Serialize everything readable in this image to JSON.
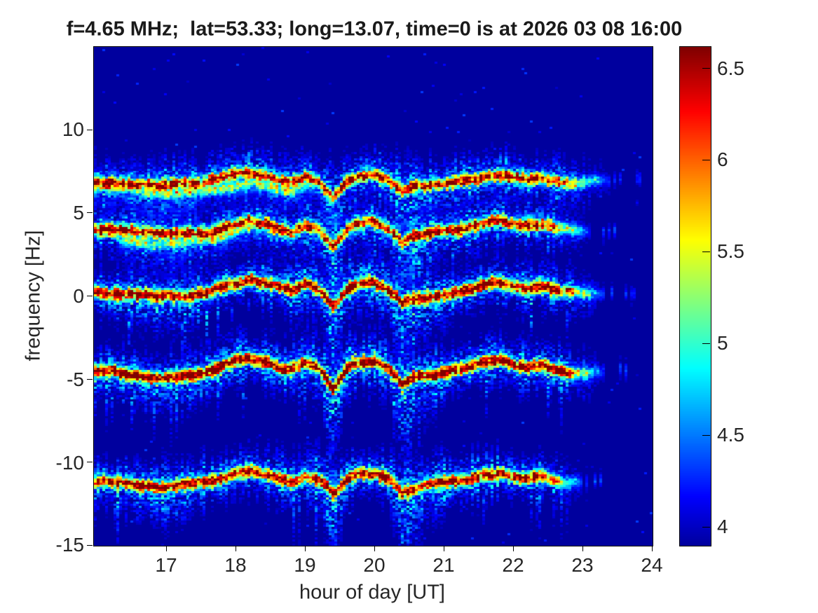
{
  "title": "f=4.65 MHz;  lat=53.33; long=13.07, time=0 is at 2026 03 08 16:00",
  "colors": {
    "figure_background": "#ffffff",
    "plot_background": "rgb(0,0,158)",
    "text": "#262626",
    "colormap_low": "#000080",
    "colormap_high": "#7f0000"
  },
  "chart_data": {
    "type": "heatmap",
    "subtype": "doppler-spectrogram",
    "title": "f=4.65 MHz;  lat=53.33; long=13.07, time=0 is at 2026 03 08 16:00",
    "xlabel": "hour of day [UT]",
    "ylabel": "frequency [Hz]",
    "xlim": [
      15.95,
      24
    ],
    "ylim": [
      -15,
      15
    ],
    "x_ticks": [
      "17",
      "18",
      "19",
      "20",
      "21",
      "22",
      "23",
      "24"
    ],
    "x_tick_values": [
      17,
      18,
      19,
      20,
      21,
      22,
      23,
      24
    ],
    "y_ticks": [
      "10",
      "5",
      "0",
      "-5",
      "-10",
      "-15"
    ],
    "y_tick_values": [
      10,
      5,
      0,
      -5,
      -10,
      -15
    ],
    "grid": false,
    "colormap": "jet",
    "colorbar": {
      "position": "right",
      "ticks": [
        "4",
        "4.5",
        "5",
        "5.5",
        "6",
        "6.5"
      ],
      "tick_values": [
        4,
        4.5,
        5,
        5.5,
        6,
        6.5
      ],
      "range": [
        3.9,
        6.62
      ]
    },
    "background_value": 3.9,
    "wiggle": {
      "comment": "common Doppler excursion pattern [Hz] shared by all multipath traces",
      "start_hour": 16.0,
      "step_hour": 0.2,
      "relative_hz": [
        0,
        -0.05,
        -0.12,
        -0.2,
        -0.3,
        -0.35,
        -0.28,
        -0.18,
        -0.02,
        0.22,
        0.45,
        0.65,
        0.45,
        0.12,
        -0.05,
        0.42,
        0.08,
        -1.0,
        0.12,
        0.48,
        0.55,
        0.05,
        -0.85,
        -0.45,
        -0.25,
        -0.12,
        0.05,
        0.25,
        0.45,
        0.55,
        0.32,
        0.12,
        0.25,
        0.1,
        -0.05,
        -0.1,
        -0.05,
        0,
        0
      ]
    },
    "traces": [
      {
        "name": "doppler-mode-1",
        "center_hz": 6.9,
        "wiggle_scale": 0.8,
        "intensity": 0.85,
        "start_hour": 15.95,
        "fade_start_hour": 22.5,
        "fade_end_hour": 23.4
      },
      {
        "name": "doppler-mode-1-secondary",
        "center_hz": 6.45,
        "wiggle_scale": 0.75,
        "intensity": 0.5,
        "start_hour": 15.95,
        "fade_start_hour": 18.8,
        "fade_end_hour": 19.3
      },
      {
        "name": "doppler-mode-2",
        "center_hz": 3.95,
        "wiggle_scale": 0.95,
        "intensity": 0.9,
        "start_hour": 15.95,
        "fade_start_hour": 22.4,
        "fade_end_hour": 23.1
      },
      {
        "name": "doppler-mode-2-secondary",
        "center_hz": 3.45,
        "wiggle_scale": 0.9,
        "intensity": 0.45,
        "start_hour": 16.3,
        "fade_start_hour": 18.2,
        "fade_end_hour": 18.7
      },
      {
        "name": "doppler-mode-3",
        "center_hz": 0.3,
        "wiggle_scale": 1.0,
        "intensity": 0.95,
        "start_hour": 15.95,
        "fade_start_hour": 22.6,
        "fade_end_hour": 23.3
      },
      {
        "name": "doppler-mode-4",
        "center_hz": -4.45,
        "wiggle_scale": 1.15,
        "intensity": 1.0,
        "start_hour": 15.95,
        "fade_start_hour": 22.6,
        "fade_end_hour": 23.3
      },
      {
        "name": "doppler-mode-5",
        "center_hz": -11.15,
        "wiggle_scale": 0.85,
        "intensity": 0.92,
        "start_hour": 15.95,
        "fade_start_hour": 22.4,
        "fade_end_hour": 23.0
      }
    ]
  }
}
